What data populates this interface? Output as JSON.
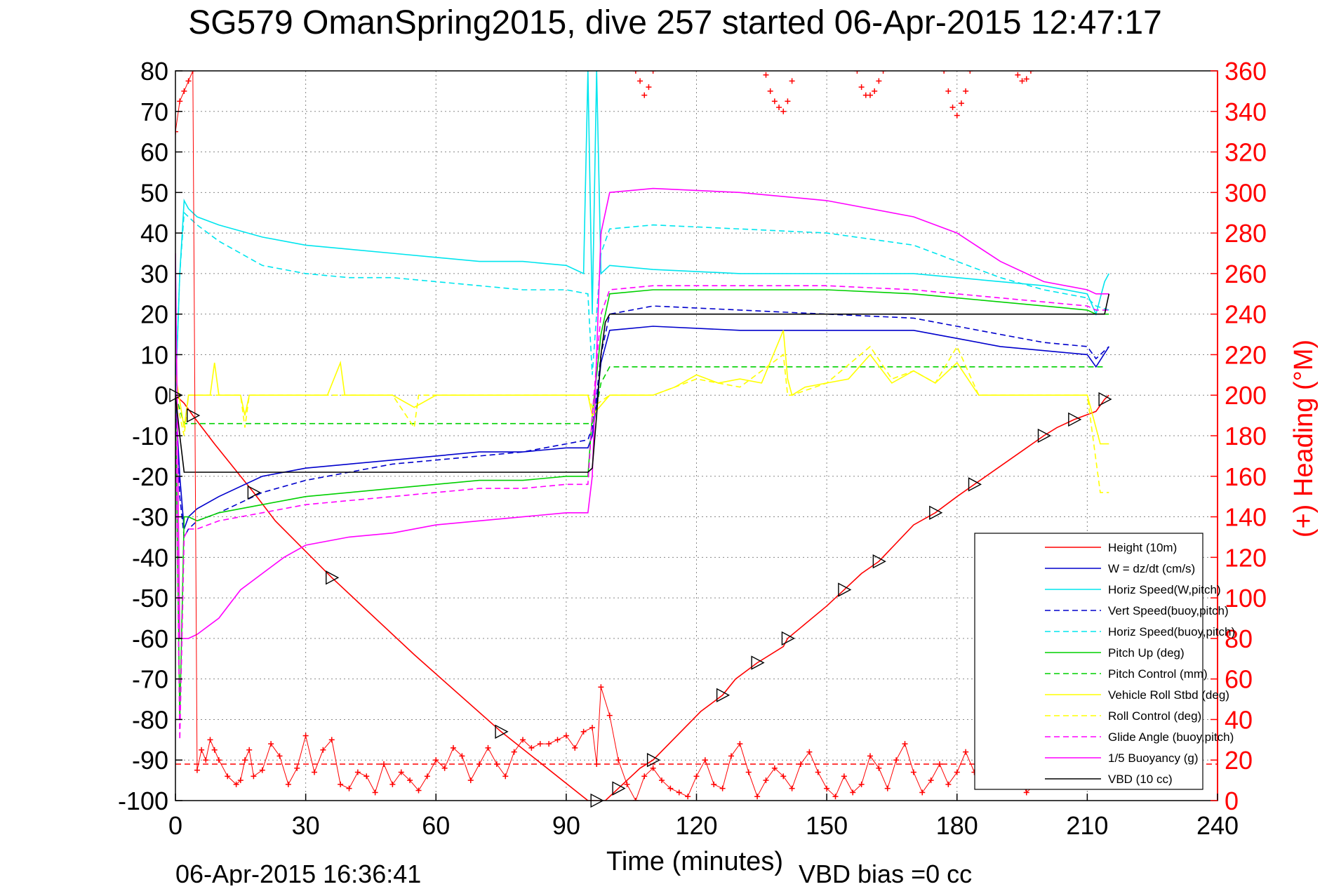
{
  "chart_data": {
    "type": "line",
    "title": "SG579 OmanSpring2015, dive 257 started 06-Apr-2015 12:47:17",
    "xlabel": "Time (minutes)",
    "ylabel_right": "(+) Heading (°M)",
    "footer_left": "06-Apr-2015 16:36:41",
    "footer_right": "VBD bias =0 cc",
    "xlim": [
      0,
      240
    ],
    "ylim": [
      -100,
      80
    ],
    "ylim_right": [
      0,
      360
    ],
    "x_ticks": [
      "0",
      "30",
      "60",
      "90",
      "120",
      "150",
      "180",
      "210",
      "240"
    ],
    "y_ticks": [
      "80",
      "70",
      "60",
      "50",
      "40",
      "30",
      "20",
      "10",
      "0",
      "-10",
      "-20",
      "-30",
      "-40",
      "-50",
      "-60",
      "-70",
      "-80",
      "-90",
      "-100"
    ],
    "y_right_ticks": [
      "360",
      "340",
      "320",
      "300",
      "280",
      "260",
      "240",
      "220",
      "200",
      "180",
      "160",
      "140",
      "120",
      "100",
      "80",
      "60",
      "40",
      "20",
      "0"
    ],
    "grid": true,
    "legend_position": "lower-right",
    "colors": {
      "height": "#ff0000",
      "w": "#0000cc",
      "horiz_speed": "#00e5ee",
      "pitch": "#00d000",
      "roll": "#ffff00",
      "glide": "#ff00ff",
      "buoyancy": "#ff00ff",
      "vbd": "#000000",
      "heading": "#ff0000"
    },
    "series": [
      {
        "name": "Height (10m)",
        "style": "solid",
        "color": "#ff0000",
        "x": [
          0,
          2,
          4,
          9,
          18,
          23,
          36,
          55,
          75,
          95,
          97,
          99,
          102,
          107,
          110,
          121,
          126,
          129,
          134,
          140,
          141,
          150,
          154,
          158,
          162,
          170,
          175,
          180,
          184,
          196,
          200,
          203,
          207,
          212,
          214,
          215
        ],
        "y": [
          0,
          -2,
          -5,
          -12,
          -24,
          -31,
          -45,
          -64,
          -83,
          -100,
          -100,
          -100,
          -97,
          -92,
          -90,
          -78,
          -74,
          -70,
          -66,
          -62,
          -60,
          -52,
          -48,
          -44,
          -41,
          -32,
          -29,
          -25,
          -22,
          -13,
          -10,
          -8,
          -6,
          -4,
          -1,
          0
        ]
      },
      {
        "name": "W = dz/dt (cm/s)",
        "style": "solid",
        "color": "#0000cc",
        "x": [
          0,
          1,
          2,
          3,
          5,
          10,
          20,
          30,
          40,
          50,
          60,
          70,
          80,
          90,
          95,
          96,
          97,
          98,
          100,
          110,
          130,
          150,
          170,
          180,
          190,
          200,
          210,
          212,
          215
        ],
        "y": [
          0,
          -20,
          -33,
          -30,
          -28,
          -25,
          -20,
          -18,
          -17,
          -16,
          -15,
          -14,
          -14,
          -13,
          -13,
          -10,
          -2,
          8,
          16,
          17,
          16,
          16,
          16,
          14,
          12,
          11,
          10,
          7,
          12
        ]
      },
      {
        "name": "Horiz Speed(W,pitch)",
        "style": "solid",
        "color": "#00e5ee",
        "x": [
          0,
          1,
          2,
          3,
          5,
          10,
          20,
          30,
          40,
          50,
          60,
          70,
          80,
          90,
          94,
          95,
          96,
          97,
          98,
          100,
          110,
          130,
          150,
          170,
          180,
          190,
          200,
          210,
          212,
          214,
          215
        ],
        "y": [
          0,
          30,
          48,
          46,
          44,
          42,
          39,
          37,
          36,
          35,
          34,
          33,
          33,
          32,
          30,
          80,
          20,
          80,
          30,
          32,
          31,
          30,
          30,
          30,
          29,
          28,
          27,
          25,
          20,
          28,
          30
        ]
      },
      {
        "name": "Vert Speed(buoy,pitch)",
        "style": "dashed",
        "color": "#0000cc",
        "x": [
          0,
          1,
          2,
          3,
          5,
          10,
          20,
          30,
          40,
          50,
          60,
          70,
          80,
          90,
          95,
          96,
          97,
          98,
          100,
          110,
          130,
          150,
          170,
          180,
          190,
          200,
          210,
          212,
          215
        ],
        "y": [
          0,
          -25,
          -35,
          -33,
          -31,
          -29,
          -24,
          -21,
          -19,
          -17,
          -16,
          -15,
          -14,
          -12,
          -11,
          -8,
          0,
          10,
          20,
          22,
          21,
          20,
          19,
          17,
          15,
          13,
          12,
          9,
          12
        ]
      },
      {
        "name": "Horiz Speed(buoy,pitch)",
        "style": "dashed",
        "color": "#00e5ee",
        "x": [
          0,
          1,
          2,
          3,
          5,
          10,
          20,
          30,
          40,
          50,
          60,
          70,
          80,
          90,
          95,
          96,
          97,
          98,
          100,
          110,
          130,
          150,
          170,
          180,
          190,
          200,
          210,
          212,
          215
        ],
        "y": [
          0,
          30,
          45,
          44,
          42,
          38,
          32,
          30,
          29,
          29,
          28,
          27,
          26,
          26,
          25,
          5,
          20,
          35,
          41,
          42,
          41,
          40,
          37,
          33,
          29,
          26,
          24,
          22,
          21
        ]
      },
      {
        "name": "Pitch Up (deg)",
        "style": "solid",
        "color": "#00d000",
        "x": [
          0,
          1,
          2,
          3,
          5,
          10,
          20,
          30,
          40,
          50,
          60,
          70,
          80,
          90,
          95,
          96,
          97,
          98,
          100,
          110,
          130,
          150,
          170,
          180,
          190,
          200,
          210,
          212,
          215
        ],
        "y": [
          0,
          -80,
          -30,
          -30,
          -31,
          -29,
          -27,
          -25,
          -24,
          -23,
          -22,
          -21,
          -21,
          -20,
          -20,
          -5,
          5,
          15,
          25,
          26,
          26,
          26,
          25,
          24,
          23,
          22,
          21,
          20,
          20
        ]
      },
      {
        "name": "Pitch Control (mm)",
        "style": "dashed",
        "color": "#00d000",
        "x": [
          0,
          2,
          5,
          50,
          96,
          97,
          98,
          100,
          150,
          214
        ],
        "y": [
          0,
          -7,
          -7,
          -7,
          -7,
          -3,
          3,
          7,
          7,
          7
        ]
      },
      {
        "name": "Vehicle Roll Stbd (deg)",
        "style": "solid",
        "color": "#ffff00",
        "x": [
          0,
          2,
          3,
          5,
          8,
          9,
          10,
          15,
          16,
          17,
          20,
          30,
          35,
          38,
          39,
          40,
          45,
          50,
          55,
          60,
          70,
          80,
          90,
          95,
          96,
          100,
          105,
          110,
          115,
          120,
          125,
          130,
          135,
          140,
          141,
          142,
          145,
          150,
          155,
          160,
          165,
          170,
          175,
          180,
          185,
          190,
          195,
          200,
          205,
          210,
          213,
          215
        ],
        "y": [
          5,
          -8,
          0,
          0,
          0,
          8,
          0,
          0,
          -5,
          0,
          0,
          0,
          0,
          8,
          0,
          0,
          0,
          0,
          -3,
          0,
          0,
          0,
          0,
          0,
          -5,
          0,
          0,
          0,
          2,
          5,
          3,
          4,
          3,
          16,
          4,
          0,
          2,
          3,
          4,
          10,
          3,
          6,
          3,
          8,
          0,
          0,
          0,
          0,
          0,
          0,
          -12,
          -12
        ]
      },
      {
        "name": "Roll Control (deg)",
        "style": "dashed",
        "color": "#ffff00",
        "x": [
          0,
          2,
          3,
          5,
          10,
          15,
          16,
          17,
          20,
          30,
          40,
          50,
          55,
          56,
          57,
          60,
          70,
          80,
          90,
          95,
          96,
          100,
          105,
          110,
          120,
          130,
          140,
          141,
          142,
          150,
          160,
          165,
          170,
          175,
          180,
          185,
          190,
          200,
          210,
          213,
          215
        ],
        "y": [
          0,
          -10,
          0,
          0,
          0,
          0,
          -8,
          0,
          0,
          0,
          0,
          0,
          -8,
          0,
          0,
          0,
          0,
          0,
          0,
          0,
          -3,
          0,
          0,
          0,
          4,
          2,
          10,
          0,
          0,
          3,
          12,
          4,
          6,
          3,
          12,
          0,
          0,
          0,
          0,
          -24,
          -24
        ]
      },
      {
        "name": "Glide Angle (buoy,pitch)",
        "style": "dashed",
        "color": "#ff00ff",
        "x": [
          0,
          1,
          2,
          3,
          5,
          10,
          20,
          30,
          40,
          50,
          60,
          70,
          80,
          90,
          95,
          96,
          97,
          98,
          100,
          110,
          130,
          150,
          170,
          180,
          190,
          200,
          210,
          212,
          215
        ],
        "y": [
          0,
          -85,
          -35,
          -33,
          -33,
          -31,
          -29,
          -27,
          -26,
          -25,
          -24,
          -23,
          -23,
          -22,
          -22,
          -5,
          8,
          20,
          26,
          27,
          27,
          27,
          26,
          25,
          24,
          23,
          22,
          21,
          21
        ]
      },
      {
        "name": "1/5 Buoyancy (g)",
        "style": "solid",
        "color": "#ff00ff",
        "x": [
          0,
          1,
          2,
          3,
          5,
          10,
          15,
          20,
          25,
          30,
          40,
          50,
          60,
          70,
          80,
          90,
          95,
          96,
          97,
          98,
          100,
          110,
          130,
          150,
          170,
          180,
          190,
          200,
          210,
          212,
          215
        ],
        "y": [
          35,
          -60,
          -60,
          -60,
          -59,
          -55,
          -48,
          -44,
          -40,
          -37,
          -35,
          -34,
          -32,
          -31,
          -30,
          -29,
          -29,
          -20,
          10,
          40,
          50,
          51,
          50,
          48,
          44,
          40,
          33,
          28,
          26,
          25,
          25
        ]
      },
      {
        "name": "VBD (10 cc)",
        "style": "solid",
        "color": "#000000",
        "x": [
          0,
          1,
          2,
          3,
          95,
          96,
          97,
          98,
          99,
          100,
          214,
          215
        ],
        "y": [
          0,
          -10,
          -19,
          -19,
          -19,
          -18,
          -5,
          10,
          18,
          20,
          20,
          25
        ]
      }
    ],
    "heading": {
      "name": "(+) Heading (°M)",
      "color": "#ff0000",
      "marker": "+",
      "reference_line_y_right": 18,
      "x": [
        0,
        1,
        2,
        3,
        4,
        5,
        6,
        7,
        8,
        9,
        10,
        12,
        14,
        15,
        16,
        17,
        18,
        20,
        22,
        24,
        26,
        28,
        30,
        32,
        34,
        36,
        38,
        40,
        42,
        44,
        46,
        48,
        50,
        52,
        54,
        56,
        58,
        60,
        62,
        64,
        66,
        68,
        70,
        72,
        74,
        76,
        78,
        80,
        82,
        84,
        86,
        88,
        90,
        92,
        94,
        96,
        97,
        98,
        100,
        102,
        104,
        106,
        108,
        110,
        112,
        114,
        116,
        118,
        120,
        122,
        124,
        126,
        128,
        130,
        132,
        134,
        136,
        138,
        140,
        142,
        144,
        146,
        148,
        150,
        152,
        154,
        156,
        158,
        160,
        162,
        164,
        166,
        168,
        170,
        172,
        174,
        176,
        178,
        180,
        182,
        184,
        186,
        188,
        190,
        192,
        194,
        196,
        198,
        200
      ],
      "y": [
        330,
        345,
        350,
        355,
        360,
        15,
        25,
        20,
        30,
        25,
        20,
        12,
        8,
        10,
        20,
        25,
        12,
        15,
        28,
        22,
        8,
        16,
        32,
        14,
        25,
        30,
        8,
        6,
        14,
        12,
        4,
        18,
        8,
        14,
        10,
        5,
        12,
        20,
        16,
        26,
        22,
        10,
        18,
        26,
        18,
        12,
        24,
        30,
        26,
        28,
        28,
        30,
        32,
        26,
        34,
        36,
        18,
        56,
        42,
        20,
        8,
        0,
        12,
        16,
        10,
        6,
        4,
        2,
        12,
        20,
        8,
        6,
        22,
        28,
        14,
        2,
        10,
        16,
        12,
        6,
        18,
        24,
        14,
        6,
        2,
        12,
        4,
        8,
        22,
        16,
        6,
        20,
        28,
        14,
        4,
        10,
        18,
        8,
        14,
        24,
        14,
        20,
        8,
        20,
        8,
        14,
        4,
        8,
        12
      ]
    },
    "heading_top_clusters": [
      {
        "x": [
          106,
          107,
          108,
          109,
          110
        ],
        "y": [
          360,
          355,
          348,
          352,
          360
        ]
      },
      {
        "x": [
          136,
          137,
          138,
          139,
          140,
          141,
          142
        ],
        "y": [
          358,
          350,
          345,
          342,
          340,
          345,
          355
        ]
      },
      {
        "x": [
          157,
          158,
          159,
          160,
          161,
          162,
          163
        ],
        "y": [
          360,
          352,
          348,
          348,
          350,
          355,
          360
        ]
      },
      {
        "x": [
          177,
          178,
          179,
          180,
          181,
          182,
          183
        ],
        "y": [
          360,
          350,
          342,
          338,
          344,
          350,
          360
        ]
      },
      {
        "x": [
          194,
          195,
          196,
          197
        ],
        "y": [
          358,
          355,
          356,
          360
        ]
      }
    ],
    "legend": [
      "Height (10m)",
      "W = dz/dt (cm/s)",
      "Horiz Speed(W,pitch)",
      "Vert Speed(buoy,pitch)",
      "Horiz Speed(buoy,pitch)",
      "Pitch Up (deg)",
      "Pitch Control (mm)",
      "Vehicle Roll Stbd (deg)",
      "Roll Control (deg)",
      "Glide Angle (buoy,pitch)",
      "1/5 Buoyancy (g)",
      "VBD (10 cc)"
    ]
  }
}
